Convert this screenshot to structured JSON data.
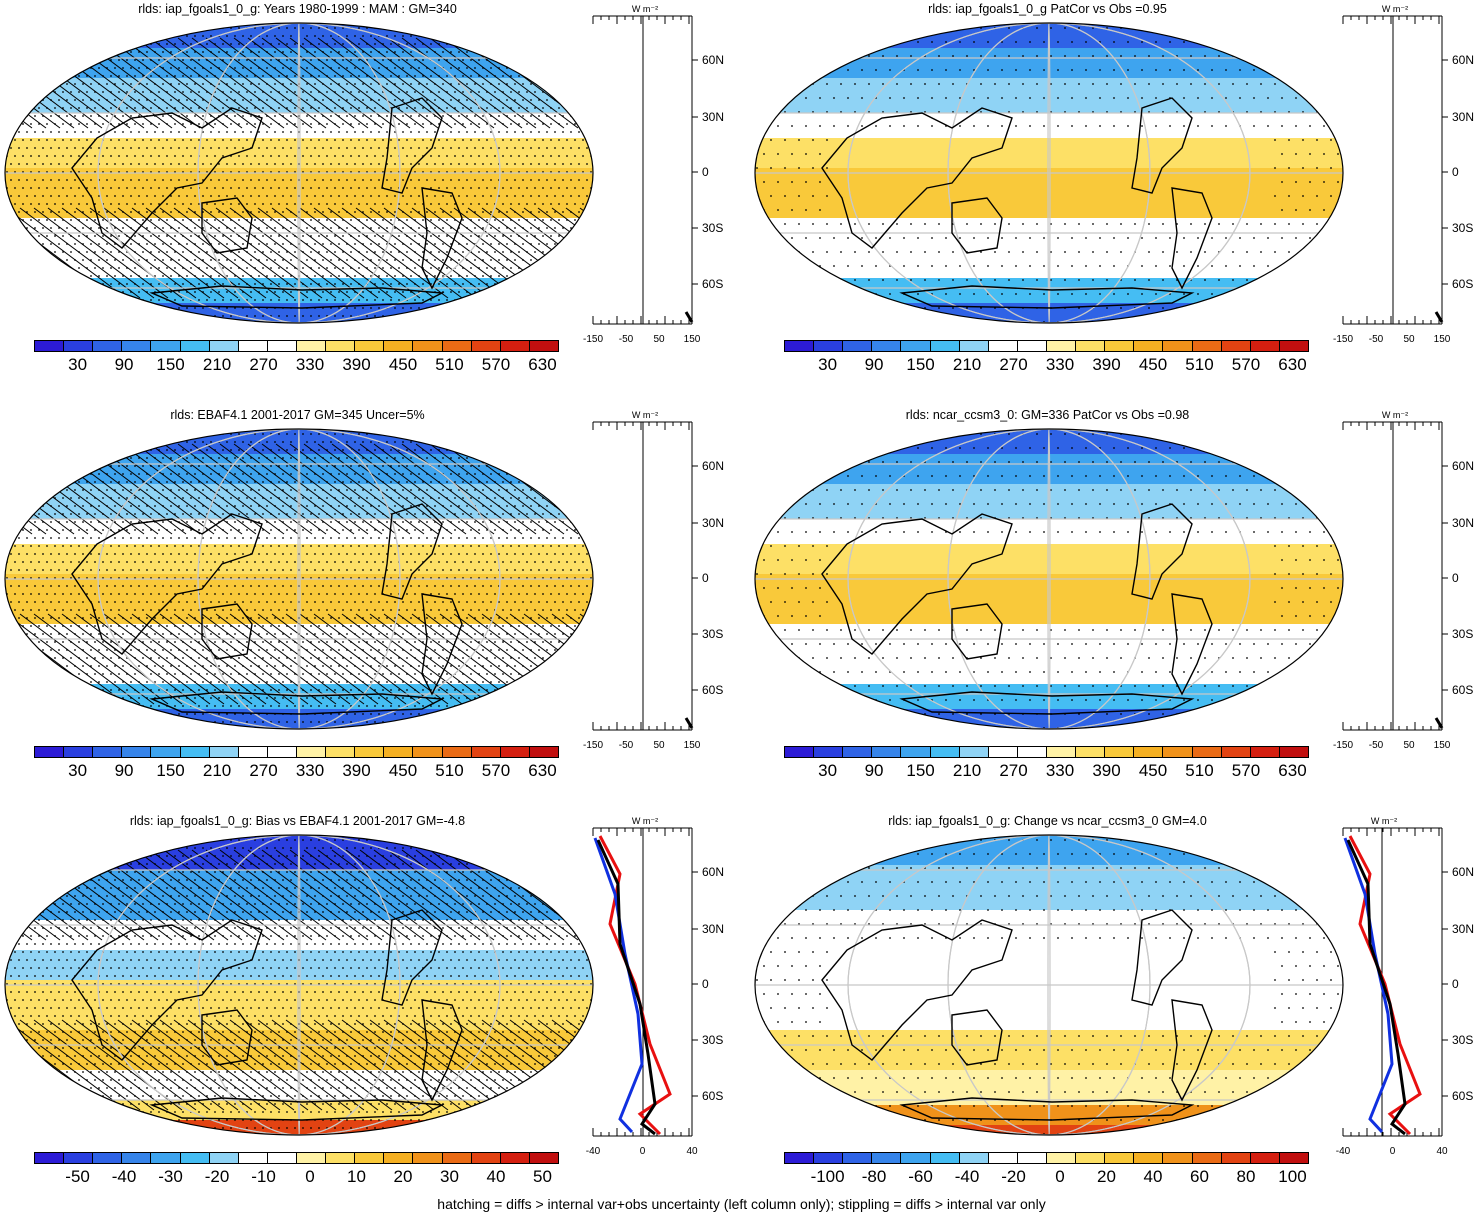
{
  "panels": [
    {
      "id": "p1",
      "title": "rlds: iap_fgoals1_0_g: Years 1980-1999 : MAM : GM=340",
      "scale": "abs",
      "hatch": true,
      "stipple": "dense",
      "profile": {
        "unit": "W m⁻²",
        "xticks": [
          "-150",
          "-50",
          "50",
          "150"
        ],
        "yticks": [
          "60N",
          "30N",
          "0",
          "30S",
          "60S"
        ]
      }
    },
    {
      "id": "p2",
      "title": "rlds: iap_fgoals1_0_g PatCor vs Obs =0.95",
      "scale": "abs",
      "hatch": false,
      "stipple": "sparse",
      "profile": {
        "unit": "W m⁻²",
        "xticks": [
          "-150",
          "-50",
          "50",
          "150"
        ],
        "yticks": [
          "60N",
          "30N",
          "0",
          "30S",
          "60S"
        ]
      }
    },
    {
      "id": "p3",
      "title": "rlds: EBAF4.1 2001-2017 GM=345 Uncer=5%",
      "scale": "abs",
      "hatch": true,
      "stipple": "dense",
      "profile": {
        "unit": "W m⁻²",
        "xticks": [
          "-150",
          "-50",
          "50",
          "150"
        ],
        "yticks": [
          "60N",
          "30N",
          "0",
          "30S",
          "60S"
        ]
      }
    },
    {
      "id": "p4",
      "title": "rlds: ncar_ccsm3_0: GM=336 PatCor vs Obs =0.98",
      "scale": "abs",
      "hatch": false,
      "stipple": "sparse",
      "profile": {
        "unit": "W m⁻²",
        "xticks": [
          "-150",
          "-50",
          "50",
          "150"
        ],
        "yticks": [
          "60N",
          "30N",
          "0",
          "30S",
          "60S"
        ]
      }
    },
    {
      "id": "p5",
      "title": "rlds: iap_fgoals1_0_g: Bias vs EBAF4.1 2001-2017 GM=-4.8",
      "scale": "bias",
      "hatch": true,
      "stipple": "dense",
      "profile": {
        "unit": "W m⁻²",
        "xticks": [
          "-40",
          "0",
          "40"
        ],
        "yticks": [
          "60N",
          "30N",
          "0",
          "30S",
          "60S"
        ]
      }
    },
    {
      "id": "p6",
      "title": "rlds: iap_fgoals1_0_g: Change vs ncar_ccsm3_0 GM=4.0",
      "scale": "change",
      "hatch": false,
      "stipple": "sparse",
      "profile": {
        "unit": "W m⁻²",
        "xticks": [
          "-40",
          "0",
          "40"
        ],
        "yticks": [
          "60N",
          "30N",
          "0",
          "30S",
          "60S"
        ]
      }
    }
  ],
  "colorbars": {
    "abs": {
      "labels": [
        "30",
        "90",
        "150",
        "210",
        "270",
        "330",
        "390",
        "450",
        "510",
        "570",
        "630"
      ]
    },
    "bias": {
      "labels": [
        "-50",
        "-40",
        "-30",
        "-20",
        "-10",
        "0",
        "10",
        "20",
        "30",
        "40",
        "50"
      ]
    },
    "change": {
      "labels": [
        "-100",
        "-80",
        "-60",
        "-40",
        "-20",
        "0",
        "20",
        "40",
        "60",
        "80",
        "100"
      ]
    }
  },
  "palette": [
    "#2c1bd6",
    "#2a3fe0",
    "#2f63e6",
    "#3684ea",
    "#3ea4ef",
    "#45bdf3",
    "#8fd3f5",
    "#ffffff",
    "#ffffff",
    "#fff2a6",
    "#fde066",
    "#f9c93a",
    "#f5b022",
    "#f0921a",
    "#ea6b15",
    "#e24312",
    "#d41f10",
    "#c10f0f"
  ],
  "colors": {
    "land_outline": "#000000",
    "grid": "#c8c8c8",
    "model_line": "#e81010",
    "obs_line": "#1030e0",
    "ref_line": "#000000"
  },
  "footer": "hatching = diffs > internal var+obs uncertainty (left column only); stippling = diffs > internal var only"
}
